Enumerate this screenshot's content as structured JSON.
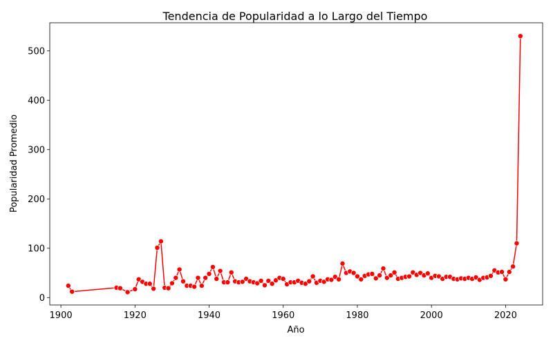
{
  "chart_data": {
    "type": "line",
    "title": "Tendencia de Popularidad a lo Largo del Tiempo",
    "xlabel": "Año",
    "ylabel": "Popularidad Promedio",
    "xlim": [
      1897,
      2030
    ],
    "ylim": [
      -15,
      557
    ],
    "xticks": [
      1900,
      1920,
      1940,
      1960,
      1980,
      2000,
      2020
    ],
    "yticks": [
      0,
      100,
      200,
      300,
      400,
      500
    ],
    "grid": false,
    "legend": "none",
    "color": "#ff0000",
    "marker": "circle",
    "series": [
      {
        "x": [
          1902,
          1903,
          1915,
          1916,
          1918,
          1920,
          1921,
          1922,
          1923,
          1924,
          1925,
          1926,
          1927,
          1928,
          1929,
          1930,
          1931,
          1932,
          1933,
          1934,
          1935,
          1936,
          1937,
          1938,
          1939,
          1940,
          1941,
          1942,
          1943,
          1944,
          1945,
          1946,
          1947,
          1948,
          1949,
          1950,
          1951,
          1952,
          1953,
          1954,
          1955,
          1956,
          1957,
          1958,
          1959,
          1960,
          1961,
          1962,
          1963,
          1964,
          1965,
          1966,
          1967,
          1968,
          1969,
          1970,
          1971,
          1972,
          1973,
          1974,
          1975,
          1976,
          1977,
          1978,
          1979,
          1980,
          1981,
          1982,
          1983,
          1984,
          1985,
          1986,
          1987,
          1988,
          1989,
          1990,
          1991,
          1992,
          1993,
          1994,
          1995,
          1996,
          1997,
          1998,
          1999,
          2000,
          2001,
          2002,
          2003,
          2004,
          2005,
          2006,
          2007,
          2008,
          2009,
          2010,
          2011,
          2012,
          2013,
          2014,
          2015,
          2016,
          2017,
          2018,
          2019,
          2020,
          2021,
          2022,
          2023,
          2024
        ],
        "values": [
          24,
          12,
          20,
          19,
          11,
          17,
          37,
          32,
          28,
          28,
          18,
          101,
          114,
          20,
          19,
          29,
          40,
          57,
          33,
          24,
          24,
          22,
          40,
          24,
          40,
          48,
          62,
          38,
          54,
          31,
          31,
          51,
          33,
          31,
          32,
          38,
          33,
          31,
          29,
          34,
          25,
          34,
          28,
          35,
          40,
          38,
          27,
          31,
          31,
          34,
          30,
          28,
          33,
          43,
          30,
          34,
          32,
          37,
          36,
          42,
          37,
          69,
          50,
          53,
          50,
          43,
          37,
          44,
          47,
          48,
          39,
          45,
          59,
          40,
          45,
          51,
          38,
          40,
          42,
          43,
          51,
          46,
          50,
          45,
          49,
          40,
          44,
          43,
          38,
          42,
          42,
          38,
          37,
          39,
          38,
          40,
          38,
          41,
          36,
          40,
          41,
          44,
          55,
          51,
          52,
          37,
          52,
          63,
          110,
          530
        ]
      }
    ]
  }
}
